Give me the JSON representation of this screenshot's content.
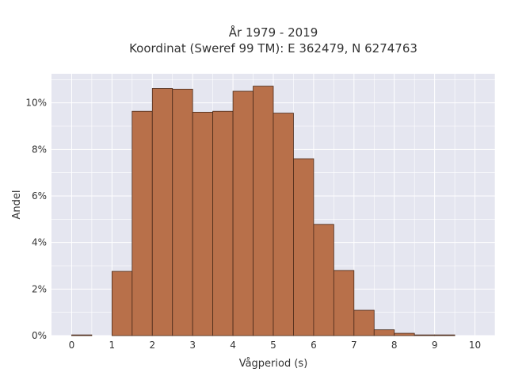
{
  "chart_data": {
    "type": "bar",
    "title_line1": "År 1979 - 2019",
    "title_line2": "Koordinat (Sweref 99 TM): E 362479, N 6274763",
    "xlabel": "Vågperiod (s)",
    "ylabel": "Andel",
    "xlim": [
      -0.5,
      10.5
    ],
    "ylim": [
      0,
      0.1125
    ],
    "x_ticks": [
      0,
      1,
      2,
      3,
      4,
      5,
      6,
      7,
      8,
      9,
      10
    ],
    "y_ticks": [
      0,
      0.02,
      0.04,
      0.06,
      0.08,
      0.1
    ],
    "y_tick_labels": [
      "0%",
      "2%",
      "4%",
      "6%",
      "8%",
      "10%"
    ],
    "bin_width": 0.5,
    "bins": [
      {
        "x0": 0.0,
        "value": 0.0003
      },
      {
        "x0": 0.5,
        "value": 0.0
      },
      {
        "x0": 1.0,
        "value": 0.0276
      },
      {
        "x0": 1.5,
        "value": 0.0964
      },
      {
        "x0": 2.0,
        "value": 0.1062
      },
      {
        "x0": 2.5,
        "value": 0.1059
      },
      {
        "x0": 3.0,
        "value": 0.096
      },
      {
        "x0": 3.5,
        "value": 0.0964
      },
      {
        "x0": 4.0,
        "value": 0.105
      },
      {
        "x0": 4.5,
        "value": 0.1072
      },
      {
        "x0": 5.0,
        "value": 0.0956
      },
      {
        "x0": 5.5,
        "value": 0.076
      },
      {
        "x0": 6.0,
        "value": 0.0478
      },
      {
        "x0": 6.5,
        "value": 0.028
      },
      {
        "x0": 7.0,
        "value": 0.0109
      },
      {
        "x0": 7.5,
        "value": 0.0025
      },
      {
        "x0": 8.0,
        "value": 0.001
      },
      {
        "x0": 8.5,
        "value": 0.0003
      },
      {
        "x0": 9.0,
        "value": 0.0003
      }
    ],
    "bar_color": "#b8704a",
    "bar_edge_color": "#4a2a1a",
    "plot_background": "#e5e6f0",
    "grid": true,
    "grid_color": "#ffffff"
  }
}
